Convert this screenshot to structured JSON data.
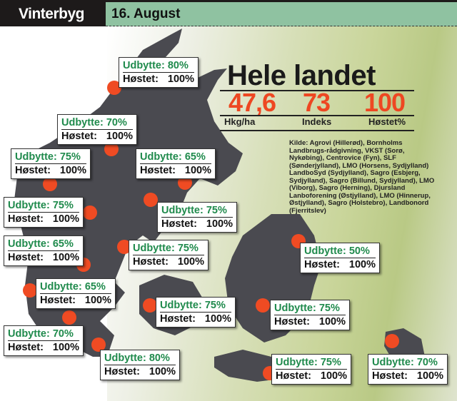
{
  "header": {
    "category": "Vinterbyg",
    "date": "16. August"
  },
  "national": {
    "title": "Hele landet",
    "yield": "47,6",
    "yield_unit": "Hkg/ha",
    "index": "73",
    "index_label": "Indeks",
    "harvested": "100",
    "harvested_label": "Høstet%"
  },
  "source": {
    "label": "Kilde:",
    "text": " Agrovi (Hillerød), Bornholms Landbrugs-rådgivning, VKST (Sorø, Nykøbing), Centrovice (Fyn), SLF (Sønderjylland), LMO (Horsens, Sydjylland) LandboSyd (Sydjylland), Sagro (Esbjerg, Sydjylland), Sagro (Billund, Sydjylland), LMO (Viborg), Sagro (Herning), Djursland Lanboforening (Østjylland), LMO (Hinnerup, Østjylland), Sagro (Holstebro), Landbonord (Fjerritslev)"
  },
  "colors": {
    "header_dark": "#1d1a1a",
    "header_green": "#8fc2a1",
    "marker": "#ef4b23",
    "yield_text": "#1f8a4c",
    "map": "#4a4a50",
    "highlight": "#ee4722"
  },
  "regions": [
    {
      "yield": "Udbytte: 80%",
      "harvested_label": "Høstet:",
      "harvested": "100%"
    },
    {
      "yield": "Udbytte: 70%",
      "harvested_label": "Høstet:",
      "harvested": "100%"
    },
    {
      "yield": "Udbytte: 75%",
      "harvested_label": "Høstet:",
      "harvested": "100%"
    },
    {
      "yield": "Udbytte: 65%",
      "harvested_label": "Høstet:",
      "harvested": "100%"
    },
    {
      "yield": "Udbytte: 75%",
      "harvested_label": "Høstet:",
      "harvested": "100%"
    },
    {
      "yield": "Udbytte: 75%",
      "harvested_label": "Høstet:",
      "harvested": "100%"
    },
    {
      "yield": "Udbytte: 65%",
      "harvested_label": "Høstet:",
      "harvested": "100%"
    },
    {
      "yield": "Udbytte: 75%",
      "harvested_label": "Høstet:",
      "harvested": "100%"
    },
    {
      "yield": "Udbytte: 50%",
      "harvested_label": "Høstet:",
      "harvested": "100%"
    },
    {
      "yield": "Udbytte: 65%",
      "harvested_label": "Høstet:",
      "harvested": "100%"
    },
    {
      "yield": "Udbytte: 75%",
      "harvested_label": "Høstet:",
      "harvested": "100%"
    },
    {
      "yield": "Udbytte: 75%",
      "harvested_label": "Høstet:",
      "harvested": "100%"
    },
    {
      "yield": "Udbytte: 70%",
      "harvested_label": "Høstet:",
      "harvested": "100%"
    },
    {
      "yield": "Udbytte: 80%",
      "harvested_label": "Høstet:",
      "harvested": "100%"
    },
    {
      "yield": "Udbytte: 75%",
      "harvested_label": "Høstet:",
      "harvested": "100%"
    },
    {
      "yield": "Udbytte: 70%",
      "harvested_label": "Høstet:",
      "harvested": "100%"
    }
  ]
}
